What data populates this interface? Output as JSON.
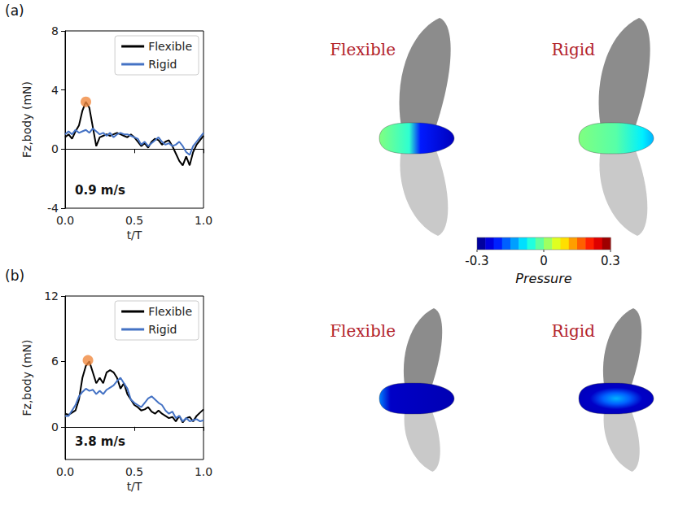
{
  "chart_data": [
    {
      "type": "line",
      "panel": "(a)",
      "annotation": "0.9 m/s",
      "x_label": "t/T",
      "y_label": "Fz,body (mN)",
      "xlim": [
        0,
        1
      ],
      "xticks": [
        {
          "value": 0,
          "label": "0.0"
        },
        {
          "value": 0.5,
          "label": "0.5"
        },
        {
          "value": 1,
          "label": "1.0"
        }
      ],
      "ylim": [
        -4,
        8
      ],
      "yticks": [
        -4,
        0,
        4,
        8
      ],
      "legend": "upper right",
      "renderings": [
        "Flexible",
        "Rigid"
      ],
      "series": [
        {
          "name": "Flexible",
          "color": "#000000",
          "x": [
            0,
            0.025,
            0.05,
            0.075,
            0.1,
            0.125,
            0.15,
            0.175,
            0.2,
            0.225,
            0.25,
            0.275,
            0.3,
            0.325,
            0.35,
            0.375,
            0.4,
            0.425,
            0.45,
            0.475,
            0.5,
            0.525,
            0.55,
            0.575,
            0.6,
            0.625,
            0.65,
            0.675,
            0.7,
            0.725,
            0.75,
            0.775,
            0.8,
            0.825,
            0.85,
            0.875,
            0.9,
            0.925,
            0.95,
            0.975,
            1
          ],
          "values": [
            0.8,
            1.0,
            0.7,
            1.2,
            1.6,
            2.6,
            3.2,
            2.8,
            1.5,
            0.2,
            0.8,
            0.9,
            1.0,
            0.9,
            1.0,
            1.1,
            1.0,
            0.9,
            0.8,
            1.0,
            0.8,
            0.5,
            0.2,
            0.4,
            0.1,
            0.5,
            0.7,
            0.6,
            0.3,
            0.5,
            0.6,
            0.2,
            -0.3,
            -0.8,
            -1.1,
            -0.5,
            -1.1,
            -0.2,
            0.3,
            0.6,
            0.9
          ]
        },
        {
          "name": "Rigid",
          "color": "#4472c4",
          "x": [
            0,
            0.025,
            0.05,
            0.075,
            0.1,
            0.125,
            0.15,
            0.175,
            0.2,
            0.225,
            0.25,
            0.275,
            0.3,
            0.325,
            0.35,
            0.375,
            0.4,
            0.425,
            0.45,
            0.475,
            0.5,
            0.525,
            0.55,
            0.575,
            0.6,
            0.625,
            0.65,
            0.675,
            0.7,
            0.725,
            0.75,
            0.775,
            0.8,
            0.825,
            0.85,
            0.875,
            0.9,
            0.925,
            0.95,
            0.975,
            1
          ],
          "values": [
            1.0,
            1.2,
            1.0,
            1.3,
            1.1,
            1.2,
            1.3,
            1.1,
            1.4,
            1.2,
            1.0,
            1.1,
            0.9,
            1.1,
            0.8,
            1.0,
            1.1,
            1.0,
            1.0,
            0.9,
            0.8,
            0.7,
            0.3,
            0.5,
            0.2,
            0.4,
            0.6,
            0.8,
            0.5,
            0.3,
            0.4,
            0.2,
            0.3,
            0.5,
            0.2,
            -0.2,
            -0.4,
            0.2,
            0.5,
            0.8,
            1.1
          ]
        },
        {
          "type": "scatter",
          "marker": "circle",
          "color": "#f0883e",
          "x": [
            0.15
          ],
          "values": [
            3.2
          ]
        }
      ]
    },
    {
      "type": "line",
      "panel": "(b)",
      "annotation": "3.8 m/s",
      "x_label": "t/T",
      "y_label": "Fz,body (mN)",
      "xlim": [
        0,
        1
      ],
      "xticks": [
        {
          "value": 0,
          "label": "0.0"
        },
        {
          "value": 0.5,
          "label": "0.5"
        },
        {
          "value": 1,
          "label": "1.0"
        }
      ],
      "ylim": [
        -3,
        12
      ],
      "yticks": [
        0,
        6,
        12
      ],
      "legend": "upper right",
      "renderings": [
        "Flexible",
        "Rigid"
      ],
      "series": [
        {
          "name": "Flexible",
          "color": "#000000",
          "x": [
            0,
            0.025,
            0.05,
            0.075,
            0.1,
            0.125,
            0.15,
            0.175,
            0.2,
            0.225,
            0.25,
            0.275,
            0.3,
            0.325,
            0.35,
            0.375,
            0.4,
            0.425,
            0.45,
            0.475,
            0.5,
            0.525,
            0.55,
            0.575,
            0.6,
            0.625,
            0.65,
            0.675,
            0.7,
            0.725,
            0.75,
            0.775,
            0.8,
            0.825,
            0.85,
            0.875,
            0.9,
            0.925,
            0.95,
            0.975,
            1
          ],
          "values": [
            1.2,
            1.1,
            1.3,
            1.5,
            2.5,
            4.5,
            5.6,
            6.0,
            5.0,
            4.0,
            4.5,
            4.0,
            5.0,
            5.2,
            5.0,
            4.5,
            3.5,
            4.0,
            3.0,
            2.5,
            2.0,
            1.8,
            1.5,
            1.6,
            1.8,
            1.4,
            1.2,
            1.5,
            1.2,
            1.0,
            0.8,
            0.9,
            0.5,
            1.0,
            0.4,
            0.8,
            0.9,
            0.5,
            1.0,
            1.3,
            1.6
          ]
        },
        {
          "name": "Rigid",
          "color": "#4472c4",
          "x": [
            0,
            0.025,
            0.05,
            0.075,
            0.1,
            0.125,
            0.15,
            0.175,
            0.2,
            0.225,
            0.25,
            0.275,
            0.3,
            0.325,
            0.35,
            0.375,
            0.4,
            0.425,
            0.45,
            0.475,
            0.5,
            0.525,
            0.55,
            0.575,
            0.6,
            0.625,
            0.65,
            0.675,
            0.7,
            0.725,
            0.75,
            0.775,
            0.8,
            0.825,
            0.85,
            0.875,
            0.9,
            0.925,
            0.95,
            0.975,
            1
          ],
          "values": [
            1.0,
            1.0,
            1.5,
            2.0,
            2.8,
            3.2,
            3.5,
            3.3,
            3.4,
            3.0,
            3.3,
            3.0,
            3.4,
            3.6,
            3.8,
            4.2,
            4.5,
            4.0,
            3.5,
            2.5,
            2.2,
            2.0,
            1.8,
            2.2,
            2.6,
            2.8,
            2.5,
            2.2,
            2.0,
            1.5,
            1.2,
            1.4,
            0.8,
            1.0,
            0.5,
            0.8,
            0.5,
            0.6,
            0.7,
            0.5,
            0.6
          ]
        },
        {
          "type": "scatter",
          "marker": "circle",
          "color": "#f0883e",
          "x": [
            0.165
          ],
          "values": [
            6.1
          ]
        }
      ]
    }
  ],
  "colorbar": {
    "label": "Pressure",
    "range": [
      -0.3,
      0.3
    ],
    "ticks": [
      -0.3,
      0,
      0.3
    ]
  }
}
